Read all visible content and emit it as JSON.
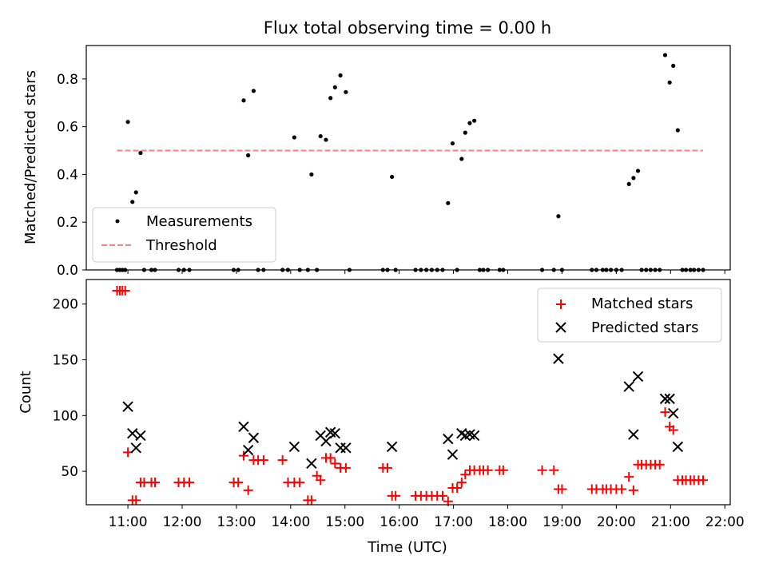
{
  "chart_data": [
    {
      "type": "scatter",
      "title": "Flux total observing time = 0.00 h",
      "ylabel": "Matched/Predicted stars",
      "xlim": [
        "10:14",
        "22:06"
      ],
      "ylim": [
        0,
        0.94
      ],
      "x_ticks": [
        "11:00",
        "12:00",
        "13:00",
        "14:00",
        "15:00",
        "16:00",
        "17:00",
        "18:00",
        "19:00",
        "20:00",
        "21:00",
        "22:00"
      ],
      "y_ticks": [
        "0.0",
        "0.2",
        "0.4",
        "0.6",
        "0.8"
      ],
      "legend": {
        "position": "lower-left",
        "entries": [
          "Measurements",
          "Threshold"
        ]
      },
      "threshold": {
        "name": "Threshold",
        "value": 0.5,
        "x_range": [
          "10:48",
          "21:36"
        ],
        "color": "#ff7f7f",
        "style": "dashed"
      },
      "series": [
        {
          "name": "Measurements",
          "marker": "dot",
          "color": "#000000",
          "points": [
            [
              "10:48",
              0
            ],
            [
              "10:51",
              0
            ],
            [
              "10:54",
              0
            ],
            [
              "10:57",
              0
            ],
            [
              "11:00",
              0.62
            ],
            [
              "11:05",
              0.285
            ],
            [
              "11:09",
              0.325
            ],
            [
              "11:14",
              0.49
            ],
            [
              "11:18",
              0
            ],
            [
              "11:26",
              0
            ],
            [
              "11:30",
              0
            ],
            [
              "11:56",
              0
            ],
            [
              "12:02",
              0
            ],
            [
              "12:08",
              0
            ],
            [
              "12:57",
              0
            ],
            [
              "13:02",
              0
            ],
            [
              "13:08",
              0.71
            ],
            [
              "13:13",
              0.48
            ],
            [
              "13:19",
              0.75
            ],
            [
              "13:24",
              0
            ],
            [
              "13:30",
              0
            ],
            [
              "13:51",
              0
            ],
            [
              "13:57",
              0
            ],
            [
              "14:04",
              0.555
            ],
            [
              "14:10",
              0
            ],
            [
              "14:19",
              0
            ],
            [
              "14:23",
              0.4
            ],
            [
              "14:29",
              0
            ],
            [
              "14:33",
              0.56
            ],
            [
              "14:39",
              0.545
            ],
            [
              "14:44",
              0.72
            ],
            [
              "14:49",
              0.765
            ],
            [
              "14:55",
              0.815
            ],
            [
              "15:01",
              0.745
            ],
            [
              "15:05",
              0
            ],
            [
              "15:42",
              0
            ],
            [
              "15:47",
              0
            ],
            [
              "15:52",
              0.39
            ],
            [
              "15:56",
              0
            ],
            [
              "16:18",
              0
            ],
            [
              "16:24",
              0
            ],
            [
              "16:30",
              0
            ],
            [
              "16:36",
              0
            ],
            [
              "16:42",
              0
            ],
            [
              "16:48",
              0
            ],
            [
              "16:54",
              0.28
            ],
            [
              "16:59",
              0.53
            ],
            [
              "17:04",
              0
            ],
            [
              "17:09",
              0.465
            ],
            [
              "17:13",
              0.575
            ],
            [
              "17:18",
              0.615
            ],
            [
              "17:23",
              0.625
            ],
            [
              "17:29",
              0
            ],
            [
              "17:33",
              0
            ],
            [
              "17:38",
              0
            ],
            [
              "17:51",
              0
            ],
            [
              "17:55",
              0
            ],
            [
              "18:38",
              0
            ],
            [
              "18:51",
              0
            ],
            [
              "18:56",
              0.225
            ],
            [
              "19:00",
              0
            ],
            [
              "19:33",
              0
            ],
            [
              "19:38",
              0
            ],
            [
              "19:45",
              0
            ],
            [
              "19:49",
              0
            ],
            [
              "19:54",
              0
            ],
            [
              "20:00",
              0
            ],
            [
              "20:06",
              0
            ],
            [
              "20:14",
              0.36
            ],
            [
              "20:19",
              0.385
            ],
            [
              "20:24",
              0.415
            ],
            [
              "20:28",
              0
            ],
            [
              "20:33",
              0
            ],
            [
              "20:38",
              0
            ],
            [
              "20:43",
              0
            ],
            [
              "20:48",
              0
            ],
            [
              "20:54",
              0.9
            ],
            [
              "20:59",
              0.785
            ],
            [
              "21:03",
              0.855
            ],
            [
              "21:08",
              0.585
            ],
            [
              "21:13",
              0
            ],
            [
              "21:17",
              0
            ],
            [
              "21:22",
              0
            ],
            [
              "21:26",
              0
            ],
            [
              "21:31",
              0
            ],
            [
              "21:36",
              0
            ]
          ]
        }
      ]
    },
    {
      "type": "scatter",
      "xlabel": "Time (UTC)",
      "ylabel": "Count",
      "xlim": [
        "10:14",
        "22:06"
      ],
      "ylim": [
        20,
        222
      ],
      "x_ticks": [
        "11:00",
        "12:00",
        "13:00",
        "14:00",
        "15:00",
        "16:00",
        "17:00",
        "18:00",
        "19:00",
        "20:00",
        "21:00",
        "22:00"
      ],
      "y_ticks": [
        "50",
        "100",
        "150",
        "200"
      ],
      "legend": {
        "position": "top-right",
        "entries": [
          "Matched stars",
          "Predicted stars"
        ]
      },
      "series": [
        {
          "name": "Matched stars",
          "marker": "plus",
          "color": "#ff0000",
          "points": [
            [
              "10:48",
              212
            ],
            [
              "10:51",
              212
            ],
            [
              "10:54",
              212
            ],
            [
              "10:57",
              212
            ],
            [
              "11:00",
              67
            ],
            [
              "11:05",
              24
            ],
            [
              "11:09",
              24
            ],
            [
              "11:14",
              40
            ],
            [
              "11:18",
              40
            ],
            [
              "11:26",
              40
            ],
            [
              "11:30",
              40
            ],
            [
              "11:56",
              40
            ],
            [
              "12:02",
              40
            ],
            [
              "12:08",
              40
            ],
            [
              "12:57",
              40
            ],
            [
              "13:02",
              40
            ],
            [
              "13:08",
              64
            ],
            [
              "13:13",
              33
            ],
            [
              "13:19",
              60
            ],
            [
              "13:24",
              60
            ],
            [
              "13:30",
              60
            ],
            [
              "13:51",
              60
            ],
            [
              "13:57",
              40
            ],
            [
              "14:04",
              40
            ],
            [
              "14:10",
              40
            ],
            [
              "14:19",
              24
            ],
            [
              "14:23",
              24
            ],
            [
              "14:29",
              46
            ],
            [
              "14:33",
              42
            ],
            [
              "14:39",
              62
            ],
            [
              "14:44",
              62
            ],
            [
              "14:49",
              57
            ],
            [
              "14:55",
              53
            ],
            [
              "15:01",
              53
            ],
            [
              "15:42",
              53
            ],
            [
              "15:47",
              53
            ],
            [
              "15:52",
              28
            ],
            [
              "15:56",
              28
            ],
            [
              "16:18",
              28
            ],
            [
              "16:24",
              28
            ],
            [
              "16:30",
              28
            ],
            [
              "16:36",
              28
            ],
            [
              "16:42",
              28
            ],
            [
              "16:48",
              28
            ],
            [
              "16:54",
              23
            ],
            [
              "16:59",
              35
            ],
            [
              "17:04",
              35
            ],
            [
              "17:09",
              40
            ],
            [
              "17:13",
              47
            ],
            [
              "17:18",
              51
            ],
            [
              "17:23",
              51
            ],
            [
              "17:29",
              51
            ],
            [
              "17:33",
              51
            ],
            [
              "17:38",
              51
            ],
            [
              "17:51",
              51
            ],
            [
              "17:55",
              51
            ],
            [
              "18:38",
              51
            ],
            [
              "18:51",
              51
            ],
            [
              "18:56",
              34
            ],
            [
              "19:00",
              34
            ],
            [
              "19:33",
              34
            ],
            [
              "19:38",
              34
            ],
            [
              "19:45",
              34
            ],
            [
              "19:49",
              34
            ],
            [
              "19:54",
              34
            ],
            [
              "20:00",
              34
            ],
            [
              "20:06",
              34
            ],
            [
              "20:14",
              45
            ],
            [
              "20:19",
              33
            ],
            [
              "20:24",
              56
            ],
            [
              "20:28",
              56
            ],
            [
              "20:33",
              56
            ],
            [
              "20:38",
              56
            ],
            [
              "20:43",
              56
            ],
            [
              "20:48",
              56
            ],
            [
              "20:54",
              103
            ],
            [
              "20:59",
              90
            ],
            [
              "21:03",
              87
            ],
            [
              "21:08",
              42
            ],
            [
              "21:13",
              42
            ],
            [
              "21:17",
              42
            ],
            [
              "21:22",
              42
            ],
            [
              "21:26",
              42
            ],
            [
              "21:31",
              42
            ],
            [
              "21:36",
              42
            ]
          ]
        },
        {
          "name": "Predicted stars",
          "marker": "x",
          "color": "#000000",
          "points": [
            [
              "11:00",
              108
            ],
            [
              "11:05",
              84
            ],
            [
              "11:09",
              71
            ],
            [
              "11:14",
              82
            ],
            [
              "13:08",
              90
            ],
            [
              "13:13",
              69
            ],
            [
              "13:19",
              80
            ],
            [
              "14:04",
              72
            ],
            [
              "14:23",
              57
            ],
            [
              "14:33",
              82
            ],
            [
              "14:39",
              77
            ],
            [
              "14:44",
              85
            ],
            [
              "14:49",
              84
            ],
            [
              "14:55",
              71
            ],
            [
              "15:01",
              71
            ],
            [
              "15:52",
              72
            ],
            [
              "16:54",
              79
            ],
            [
              "16:59",
              65
            ],
            [
              "17:09",
              84
            ],
            [
              "17:13",
              82
            ],
            [
              "17:18",
              83
            ],
            [
              "17:23",
              82
            ],
            [
              "18:56",
              151
            ],
            [
              "20:14",
              126
            ],
            [
              "20:19",
              83
            ],
            [
              "20:24",
              135
            ],
            [
              "20:54",
              115
            ],
            [
              "20:59",
              115
            ],
            [
              "21:03",
              102
            ],
            [
              "21:08",
              72
            ]
          ]
        }
      ]
    }
  ]
}
